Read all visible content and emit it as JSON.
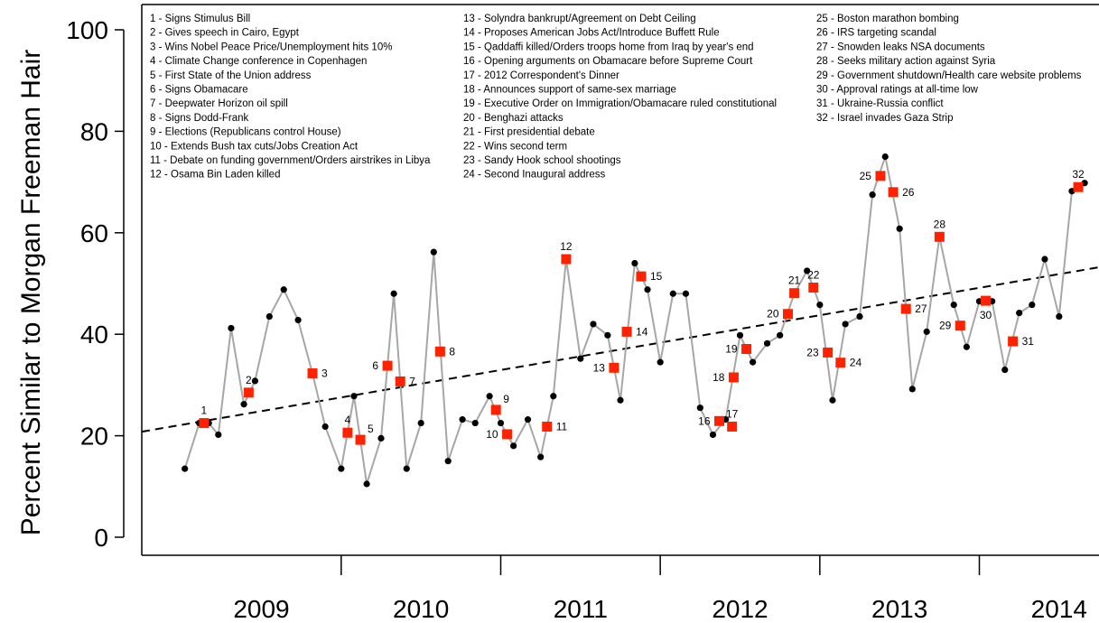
{
  "chart_data": {
    "type": "line",
    "ylabel": "Percent Similar to Morgan Freeman Hair",
    "xlabel": "",
    "ylim": [
      0,
      100
    ],
    "yticks": [
      0,
      20,
      40,
      60,
      80,
      100
    ],
    "xlim": [
      2008.75,
      2014.75
    ],
    "year_labels": [
      "2009",
      "2010",
      "2011",
      "2012",
      "2013",
      "2014"
    ],
    "year_boundaries": [
      2010,
      2011,
      2012,
      2013,
      2014
    ],
    "colors": {
      "line": "#a6a6a6",
      "point": "#000000",
      "event_marker": "#ff2200",
      "trend": "#000000"
    },
    "series": [
      {
        "name": "",
        "points": [
          [
            2009.02,
            13.5
          ],
          [
            2009.11,
            22.5
          ],
          [
            2009.17,
            22.5
          ],
          [
            2009.23,
            20.2
          ],
          [
            2009.31,
            41.2
          ],
          [
            2009.39,
            26.2
          ],
          [
            2009.46,
            30.8
          ],
          [
            2009.55,
            43.5
          ],
          [
            2009.64,
            48.8
          ],
          [
            2009.73,
            42.8
          ],
          [
            2009.82,
            32.3
          ],
          [
            2009.9,
            21.8
          ],
          [
            2010.0,
            13.5
          ],
          [
            2010.08,
            27.8
          ],
          [
            2010.16,
            10.5
          ],
          [
            2010.25,
            19.5
          ],
          [
            2010.33,
            48.0
          ],
          [
            2010.41,
            13.5
          ],
          [
            2010.5,
            22.5
          ],
          [
            2010.58,
            56.2
          ],
          [
            2010.67,
            15.0
          ],
          [
            2010.76,
            23.2
          ],
          [
            2010.84,
            22.5
          ],
          [
            2010.93,
            27.8
          ],
          [
            2011.0,
            22.5
          ],
          [
            2011.08,
            18.0
          ],
          [
            2011.17,
            23.2
          ],
          [
            2011.25,
            15.8
          ],
          [
            2011.33,
            27.8
          ],
          [
            2011.41,
            54.8
          ],
          [
            2011.5,
            35.2
          ],
          [
            2011.58,
            42.0
          ],
          [
            2011.67,
            39.8
          ],
          [
            2011.75,
            27.0
          ],
          [
            2011.84,
            54.0
          ],
          [
            2011.92,
            48.8
          ],
          [
            2012.0,
            34.5
          ],
          [
            2012.08,
            48.0
          ],
          [
            2012.16,
            48.0
          ],
          [
            2012.25,
            25.5
          ],
          [
            2012.33,
            20.2
          ],
          [
            2012.41,
            23.2
          ],
          [
            2012.5,
            39.8
          ],
          [
            2012.58,
            34.5
          ],
          [
            2012.67,
            38.2
          ],
          [
            2012.75,
            39.8
          ],
          [
            2012.84,
            48.0
          ],
          [
            2012.92,
            52.5
          ],
          [
            2013.0,
            45.8
          ],
          [
            2013.08,
            27.0
          ],
          [
            2013.16,
            42.0
          ],
          [
            2013.25,
            43.5
          ],
          [
            2013.33,
            67.5
          ],
          [
            2013.41,
            75.0
          ],
          [
            2013.5,
            60.8
          ],
          [
            2013.58,
            29.2
          ],
          [
            2013.67,
            40.5
          ],
          [
            2013.75,
            59.2
          ],
          [
            2013.84,
            45.8
          ],
          [
            2013.92,
            37.5
          ],
          [
            2014.0,
            46.5
          ],
          [
            2014.08,
            46.5
          ],
          [
            2014.16,
            33.0
          ],
          [
            2014.25,
            44.2
          ],
          [
            2014.33,
            45.8
          ],
          [
            2014.41,
            54.8
          ],
          [
            2014.5,
            43.5
          ],
          [
            2014.58,
            68.2
          ],
          [
            2014.66,
            69.8
          ]
        ]
      }
    ],
    "trend": {
      "x": [
        2008.75,
        2014.75
      ],
      "y": [
        20.8,
        53.2
      ],
      "style": "dashed"
    },
    "events": [
      {
        "id": 1,
        "x": 2009.14,
        "y": 22.5,
        "label_pos": "above"
      },
      {
        "id": 2,
        "x": 2009.42,
        "y": 28.5,
        "label_pos": "above"
      },
      {
        "id": 3,
        "x": 2009.82,
        "y": 32.3,
        "label_pos": "right"
      },
      {
        "id": 4,
        "x": 2010.04,
        "y": 20.6,
        "label_pos": "above"
      },
      {
        "id": 5,
        "x": 2010.12,
        "y": 19.2,
        "label_pos": "right-up"
      },
      {
        "id": 6,
        "x": 2010.29,
        "y": 33.8,
        "label_pos": "left"
      },
      {
        "id": 7,
        "x": 2010.37,
        "y": 30.7,
        "label_pos": "right"
      },
      {
        "id": 8,
        "x": 2010.62,
        "y": 36.6,
        "label_pos": "right"
      },
      {
        "id": 9,
        "x": 2010.97,
        "y": 25.1,
        "label_pos": "right-up"
      },
      {
        "id": 10,
        "x": 2011.04,
        "y": 20.3,
        "label_pos": "left"
      },
      {
        "id": 11,
        "x": 2011.29,
        "y": 21.8,
        "label_pos": "right"
      },
      {
        "id": 12,
        "x": 2011.41,
        "y": 54.8,
        "label_pos": "above"
      },
      {
        "id": 13,
        "x": 2011.71,
        "y": 33.4,
        "label_pos": "left"
      },
      {
        "id": 14,
        "x": 2011.79,
        "y": 40.5,
        "label_pos": "right"
      },
      {
        "id": 15,
        "x": 2011.88,
        "y": 51.4,
        "label_pos": "right"
      },
      {
        "id": 16,
        "x": 2012.37,
        "y": 22.9,
        "label_pos": "left"
      },
      {
        "id": 17,
        "x": 2012.45,
        "y": 21.8,
        "label_pos": "above"
      },
      {
        "id": 18,
        "x": 2012.46,
        "y": 31.5,
        "label_pos": "left"
      },
      {
        "id": 19,
        "x": 2012.54,
        "y": 37.1,
        "label_pos": "left"
      },
      {
        "id": 20,
        "x": 2012.8,
        "y": 44.0,
        "label_pos": "left"
      },
      {
        "id": 21,
        "x": 2012.84,
        "y": 48.1,
        "label_pos": "above"
      },
      {
        "id": 22,
        "x": 2012.96,
        "y": 49.2,
        "label_pos": "above"
      },
      {
        "id": 23,
        "x": 2013.05,
        "y": 36.4,
        "label_pos": "left"
      },
      {
        "id": 24,
        "x": 2013.13,
        "y": 34.4,
        "label_pos": "right"
      },
      {
        "id": 25,
        "x": 2013.38,
        "y": 71.2,
        "label_pos": "left"
      },
      {
        "id": 26,
        "x": 2013.46,
        "y": 68.0,
        "label_pos": "right"
      },
      {
        "id": 27,
        "x": 2013.54,
        "y": 45.0,
        "label_pos": "right"
      },
      {
        "id": 28,
        "x": 2013.75,
        "y": 59.2,
        "label_pos": "above"
      },
      {
        "id": 29,
        "x": 2013.88,
        "y": 41.7,
        "label_pos": "left"
      },
      {
        "id": 30,
        "x": 2014.04,
        "y": 46.6,
        "label_pos": "below"
      },
      {
        "id": 31,
        "x": 2014.21,
        "y": 38.6,
        "label_pos": "right"
      },
      {
        "id": 32,
        "x": 2014.62,
        "y": 69.0,
        "label_pos": "above"
      }
    ],
    "legend": {
      "position": "top",
      "columns": [
        [
          "1 - Signs Stimulus Bill",
          "2 - Gives speech in Cairo, Egypt",
          "3 - Wins Nobel Peace Price/Unemployment hits 10%",
          "4 - Climate Change conference in Copenhagen",
          "5 - First State of the Union address",
          "6 - Signs Obamacare",
          "7 - Deepwater Horizon oil spill",
          "8 - Signs Dodd-Frank",
          "9 - Elections (Republicans control House)",
          "10 - Extends Bush tax cuts/Jobs Creation Act",
          "11 - Debate on funding government/Orders airstrikes in Libya",
          "12 - Osama Bin Laden killed"
        ],
        [
          "13 - Solyndra bankrupt/Agreement on Debt Ceiling",
          "14 - Proposes American Jobs Act/Introduce Buffett Rule",
          "15 - Qaddaffi killed/Orders troops home from Iraq by year's end",
          "16 - Opening arguments on Obamacare before Supreme Court",
          "17 - 2012 Correspondent's Dinner",
          "18 - Announces support of same-sex marriage",
          "19 - Executive Order on Immigration/Obamacare ruled constitutional",
          "20 - Benghazi attacks",
          "21 - First presidential debate",
          "22 - Wins second term",
          "23 - Sandy Hook school shootings",
          "24 - Second Inaugural address"
        ],
        [
          "25 - Boston marathon bombing",
          "26 - IRS targeting scandal",
          "27 - Snowden leaks NSA documents",
          "28 - Seeks military action against Syria",
          "29 - Government shutdown/Health care website problems",
          "30 - Approval ratings at all-time low",
          "31 - Ukraine-Russia conflict",
          "32 - Israel invades Gaza Strip"
        ]
      ]
    }
  }
}
